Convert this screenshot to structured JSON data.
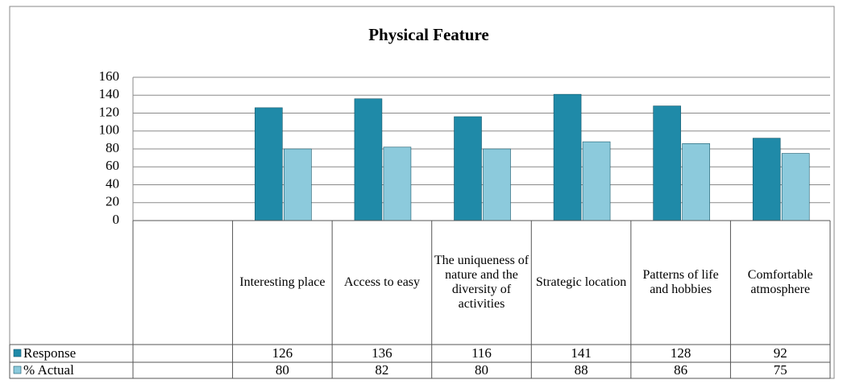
{
  "chart_data": {
    "type": "bar",
    "title": "Physical Feature",
    "categories": [
      null,
      "Interesting place",
      "Access to easy",
      "The uniqueness of nature and the diversity of activities",
      "Strategic location",
      "Patterns of life and hobbies",
      "Comfortable atmosphere"
    ],
    "series": [
      {
        "name": "Response",
        "color": "#1f8aa8",
        "values": [
          null,
          126,
          136,
          116,
          141,
          128,
          92
        ]
      },
      {
        "name": "% Actual",
        "color": "#8ccadc",
        "values": [
          null,
          80,
          82,
          80,
          88,
          86,
          75
        ]
      }
    ],
    "ylim": [
      0,
      160
    ],
    "yticks": [
      0,
      20,
      40,
      60,
      80,
      100,
      120,
      140,
      160
    ],
    "grid": true,
    "data_table": true
  }
}
